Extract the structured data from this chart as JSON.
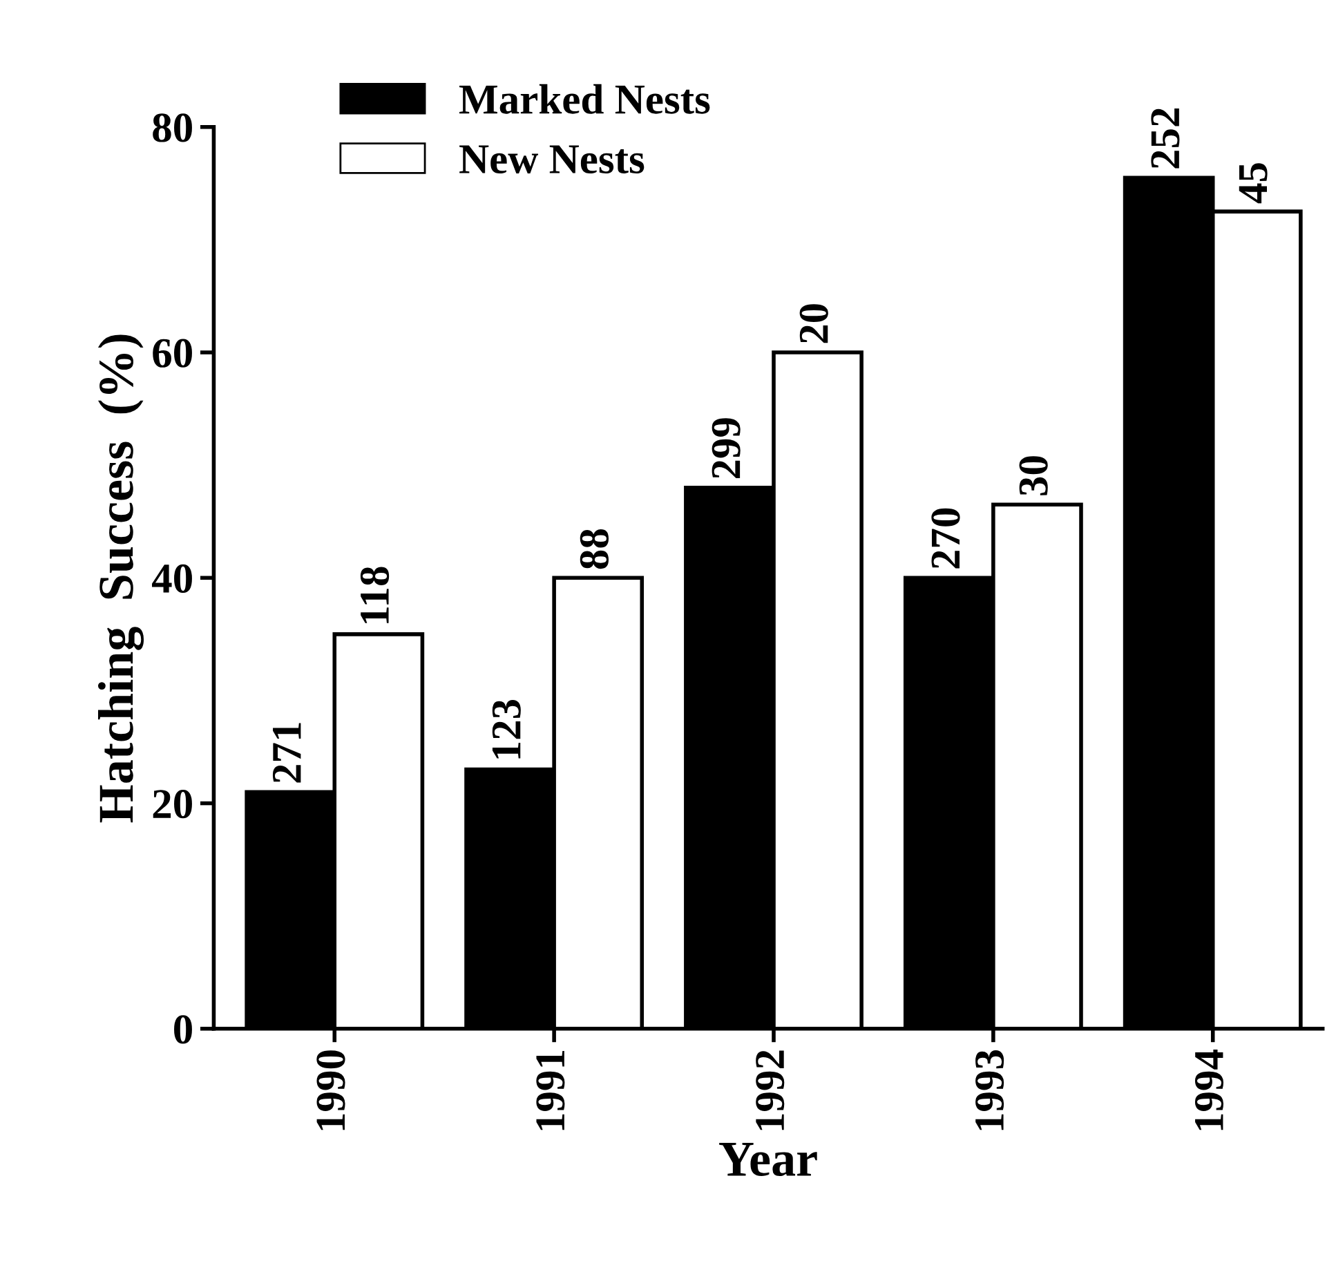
{
  "chart_data": {
    "type": "bar",
    "xlabel": "Year",
    "ylabel": "Hatching  Success  (%)",
    "categories": [
      "1990",
      "1991",
      "1992",
      "1993",
      "1994"
    ],
    "series": [
      {
        "name": "Marked Nests",
        "color": "#000000",
        "values": [
          21,
          23,
          48,
          40,
          75.5
        ]
      },
      {
        "name": "New Nests",
        "color": "#ffffff",
        "values": [
          35,
          40,
          60,
          46.5,
          72.5
        ]
      }
    ],
    "annotations": [
      {
        "text": "271",
        "x": "1990",
        "y": 21
      },
      {
        "text": "123",
        "x": "1991",
        "y": 23
      },
      {
        "text": "299",
        "x": "1992",
        "y": 48
      },
      {
        "text": "270",
        "x": "1993",
        "y": 40
      },
      {
        "text": "252",
        "x": "1994",
        "y": 75.5
      },
      {
        "text": "118",
        "x": "1990",
        "y": 35
      },
      {
        "text": "88",
        "x": "1991",
        "y": 40
      },
      {
        "text": "20",
        "x": "1992",
        "y": 60
      },
      {
        "text": "30",
        "x": "1993",
        "y": 46.5
      },
      {
        "text": "45",
        "x": "1994",
        "y": 72.5
      }
    ],
    "ylim": [
      0,
      80
    ],
    "yticks": [
      0,
      20,
      40,
      60,
      80
    ],
    "grid": false,
    "legend": "top left"
  }
}
